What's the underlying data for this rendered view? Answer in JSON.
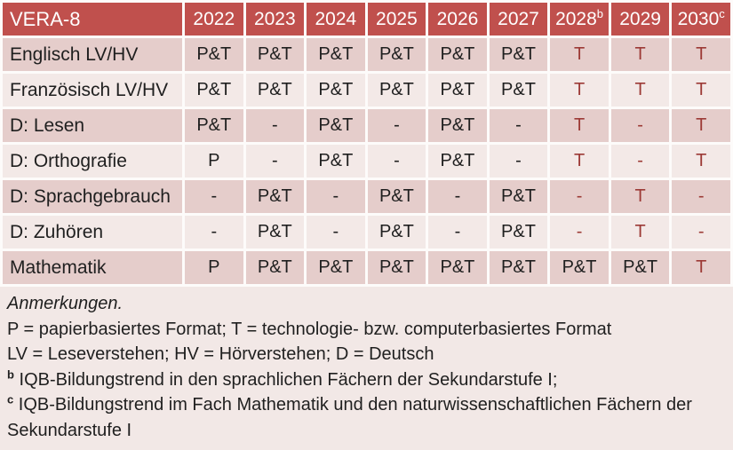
{
  "colors": {
    "header_bg": "#c0504d",
    "band_dark": "#e5cdcb",
    "band_light": "#f3e9e7",
    "notes_bg": "#f2e8e6",
    "accent_text": "#9c3a36"
  },
  "header": {
    "title": "VERA-8",
    "years": [
      {
        "label": "2022",
        "sup": ""
      },
      {
        "label": "2023",
        "sup": ""
      },
      {
        "label": "2024",
        "sup": ""
      },
      {
        "label": "2025",
        "sup": ""
      },
      {
        "label": "2026",
        "sup": ""
      },
      {
        "label": "2027",
        "sup": ""
      },
      {
        "label": "2028",
        "sup": "b"
      },
      {
        "label": "2029",
        "sup": ""
      },
      {
        "label": "2030",
        "sup": "c"
      }
    ]
  },
  "table": {
    "rows": [
      {
        "label": "Englisch LV/HV",
        "cells": [
          {
            "text": "P&T",
            "color": "black"
          },
          {
            "text": "P&T",
            "color": "black"
          },
          {
            "text": "P&T",
            "color": "black"
          },
          {
            "text": "P&T",
            "color": "black"
          },
          {
            "text": "P&T",
            "color": "black"
          },
          {
            "text": "P&T",
            "color": "black"
          },
          {
            "text": "T",
            "color": "red"
          },
          {
            "text": "T",
            "color": "red"
          },
          {
            "text": "T",
            "color": "red"
          }
        ]
      },
      {
        "label": "Französisch LV/HV",
        "cells": [
          {
            "text": "P&T",
            "color": "black"
          },
          {
            "text": "P&T",
            "color": "black"
          },
          {
            "text": "P&T",
            "color": "black"
          },
          {
            "text": "P&T",
            "color": "black"
          },
          {
            "text": "P&T",
            "color": "black"
          },
          {
            "text": "P&T",
            "color": "black"
          },
          {
            "text": "T",
            "color": "red"
          },
          {
            "text": "T",
            "color": "red"
          },
          {
            "text": "T",
            "color": "red"
          }
        ]
      },
      {
        "label": "D: Lesen",
        "cells": [
          {
            "text": "P&T",
            "color": "black"
          },
          {
            "text": "-",
            "color": "black"
          },
          {
            "text": "P&T",
            "color": "black"
          },
          {
            "text": "-",
            "color": "black"
          },
          {
            "text": "P&T",
            "color": "black"
          },
          {
            "text": "-",
            "color": "black"
          },
          {
            "text": "T",
            "color": "red"
          },
          {
            "text": "-",
            "color": "red"
          },
          {
            "text": "T",
            "color": "red"
          }
        ]
      },
      {
        "label": "D: Orthografie",
        "cells": [
          {
            "text": "P",
            "color": "black"
          },
          {
            "text": "-",
            "color": "black"
          },
          {
            "text": "P&T",
            "color": "black"
          },
          {
            "text": "-",
            "color": "black"
          },
          {
            "text": "P&T",
            "color": "black"
          },
          {
            "text": "-",
            "color": "black"
          },
          {
            "text": "T",
            "color": "red"
          },
          {
            "text": "-",
            "color": "red"
          },
          {
            "text": "T",
            "color": "red"
          }
        ]
      },
      {
        "label": "D: Sprachgebrauch",
        "cells": [
          {
            "text": "-",
            "color": "black"
          },
          {
            "text": "P&T",
            "color": "black"
          },
          {
            "text": "-",
            "color": "black"
          },
          {
            "text": "P&T",
            "color": "black"
          },
          {
            "text": "-",
            "color": "black"
          },
          {
            "text": "P&T",
            "color": "black"
          },
          {
            "text": "-",
            "color": "red"
          },
          {
            "text": "T",
            "color": "red"
          },
          {
            "text": "-",
            "color": "red"
          }
        ]
      },
      {
        "label": "D: Zuhören",
        "cells": [
          {
            "text": "-",
            "color": "black"
          },
          {
            "text": "P&T",
            "color": "black"
          },
          {
            "text": "-",
            "color": "black"
          },
          {
            "text": "P&T",
            "color": "black"
          },
          {
            "text": "-",
            "color": "black"
          },
          {
            "text": "P&T",
            "color": "black"
          },
          {
            "text": "-",
            "color": "red"
          },
          {
            "text": "T",
            "color": "red"
          },
          {
            "text": "-",
            "color": "red"
          }
        ]
      },
      {
        "label": "Mathematik",
        "cells": [
          {
            "text": "P",
            "color": "black"
          },
          {
            "text": "P&T",
            "color": "black"
          },
          {
            "text": "P&T",
            "color": "black"
          },
          {
            "text": "P&T",
            "color": "black"
          },
          {
            "text": "P&T",
            "color": "black"
          },
          {
            "text": "P&T",
            "color": "black"
          },
          {
            "text": "P&T",
            "color": "black"
          },
          {
            "text": "P&T",
            "color": "black"
          },
          {
            "text": "T",
            "color": "red"
          }
        ]
      }
    ]
  },
  "notes": {
    "heading": "Anmerkungen.",
    "lines": [
      {
        "sup": "",
        "text": "P = papierbasiertes Format; T = technologie- bzw. computerbasiertes Format"
      },
      {
        "sup": "",
        "text": "LV = Leseverstehen; HV = Hörverstehen; D = Deutsch"
      },
      {
        "sup": "b",
        "text": "IQB-Bildungstrend in den sprachlichen Fächern der Sekundarstufe I;"
      },
      {
        "sup": "c",
        "text": "IQB-Bildungstrend im Fach Mathematik und den naturwissenschaftlichen Fächern der Sekundarstufe I"
      }
    ]
  }
}
